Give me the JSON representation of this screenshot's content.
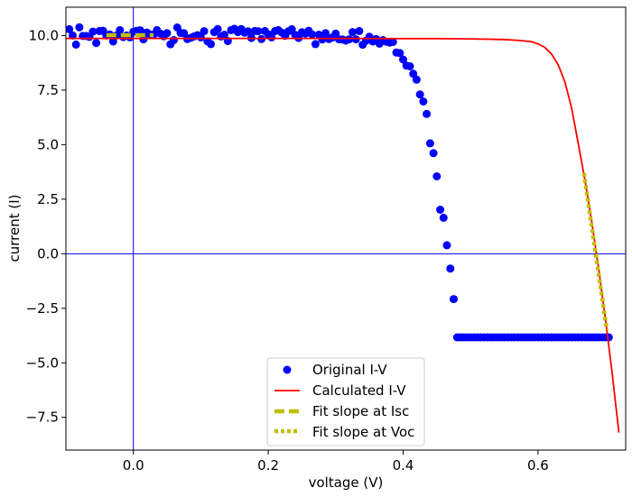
{
  "chart_data": {
    "type": "scatter",
    "xlabel": "voltage (V)",
    "ylabel": "current (I)",
    "xlim": [
      -0.1,
      0.73
    ],
    "ylim": [
      -9.0,
      11.3
    ],
    "xticks": [
      0.0,
      0.2,
      0.4,
      0.6
    ],
    "xtick_labels": [
      "0.0",
      "0.2",
      "0.4",
      "0.6"
    ],
    "yticks": [
      -7.5,
      -5.0,
      -2.5,
      0.0,
      2.5,
      5.0,
      7.5,
      10.0
    ],
    "ytick_labels": [
      "−7.5",
      "−5.0",
      "−2.5",
      "0.0",
      "2.5",
      "5.0",
      "7.5",
      "10.0"
    ],
    "grid": false,
    "reference_lines": {
      "x": 0.0,
      "y": 0.0,
      "color": "#0000ff"
    },
    "legend_position": "lower-center",
    "series": [
      {
        "name": "Original I-V",
        "kind": "scatter",
        "color": "#0000ff",
        "x": [
          -0.095,
          -0.09,
          -0.085,
          -0.08,
          -0.075,
          -0.07,
          -0.065,
          -0.06,
          -0.055,
          -0.05,
          -0.045,
          -0.04,
          -0.035,
          -0.03,
          -0.025,
          -0.02,
          -0.015,
          -0.01,
          -0.005,
          0.0,
          0.005,
          0.01,
          0.015,
          0.02,
          0.025,
          0.03,
          0.035,
          0.04,
          0.045,
          0.05,
          0.055,
          0.06,
          0.065,
          0.07,
          0.075,
          0.08,
          0.085,
          0.09,
          0.095,
          0.1,
          0.105,
          0.11,
          0.115,
          0.12,
          0.125,
          0.13,
          0.135,
          0.14,
          0.145,
          0.15,
          0.155,
          0.16,
          0.165,
          0.17,
          0.175,
          0.18,
          0.185,
          0.19,
          0.195,
          0.2,
          0.205,
          0.21,
          0.215,
          0.22,
          0.225,
          0.23,
          0.235,
          0.24,
          0.245,
          0.25,
          0.255,
          0.26,
          0.265,
          0.27,
          0.275,
          0.28,
          0.285,
          0.29,
          0.295,
          0.3,
          0.305,
          0.31,
          0.315,
          0.32,
          0.325,
          0.33,
          0.335,
          0.34,
          0.345,
          0.35,
          0.355,
          0.36,
          0.365,
          0.37,
          0.375,
          0.38,
          0.385,
          0.39,
          0.395,
          0.4,
          0.405,
          0.41,
          0.415,
          0.42,
          0.425,
          0.43,
          0.435,
          0.44,
          0.445,
          0.45,
          0.455,
          0.46,
          0.465,
          0.47,
          0.475,
          0.48,
          0.485,
          0.49,
          0.495,
          0.5,
          0.505,
          0.51,
          0.515,
          0.52,
          0.525,
          0.53,
          0.535,
          0.54,
          0.545,
          0.55,
          0.555,
          0.56,
          0.565,
          0.57,
          0.575,
          0.58,
          0.585,
          0.59,
          0.595,
          0.6,
          0.605,
          0.61,
          0.615,
          0.62,
          0.625,
          0.63,
          0.635,
          0.64,
          0.645,
          0.65,
          0.655,
          0.66,
          0.665,
          0.67,
          0.675,
          0.68,
          0.685,
          0.69,
          0.695,
          0.7,
          0.705
        ],
        "y": [
          10.29,
          10.0,
          9.59,
          10.38,
          9.98,
          9.98,
          9.94,
          10.18,
          9.66,
          10.21,
          10.22,
          10.0,
          10.05,
          9.73,
          10.0,
          10.25,
          9.93,
          10.0,
          9.92,
          10.17,
          10.22,
          10.24,
          9.83,
          10.14,
          10.05,
          10.04,
          10.25,
          10.09,
          9.97,
          10.11,
          9.6,
          9.79,
          10.37,
          10.12,
          10.11,
          9.84,
          9.9,
          9.96,
          10.02,
          9.92,
          10.2,
          9.73,
          9.61,
          10.16,
          10.3,
          9.96,
          10.04,
          9.75,
          10.25,
          10.31,
          10.16,
          10.3,
          10.13,
          10.19,
          9.89,
          10.21,
          10.2,
          9.84,
          10.21,
          10.06,
          9.92,
          10.21,
          10.25,
          10.14,
          9.99,
          10.2,
          10.29,
          10.03,
          9.89,
          10.15,
          10.09,
          10.22,
          10.05,
          9.61,
          10.04,
          9.82,
          10.11,
          9.84,
          9.91,
          10.09,
          9.83,
          9.82,
          9.77,
          9.83,
          10.16,
          9.83,
          10.21,
          9.58,
          9.76,
          9.95,
          9.73,
          9.84,
          9.63,
          9.79,
          9.72,
          9.68,
          9.71,
          9.22,
          9.2,
          8.9,
          8.62,
          8.59,
          8.25,
          7.98,
          7.3,
          6.98,
          6.41,
          5.06,
          4.61,
          3.55,
          2.02,
          1.65,
          0.39,
          -0.68,
          -2.08,
          -3.83,
          -3.83,
          -3.83,
          -3.83,
          -3.83,
          -3.83,
          -3.83,
          -3.83,
          -3.83,
          -3.83,
          -3.83,
          -3.83,
          -3.83,
          -3.83,
          -3.83,
          -3.83,
          -3.83,
          -3.83,
          -3.83,
          -3.83,
          -3.83,
          -3.83,
          -3.83,
          -3.83,
          -3.83,
          -3.83,
          -3.83,
          -3.83,
          -3.83,
          -3.83,
          -3.83,
          -3.83,
          -3.83,
          -3.83,
          -3.83,
          -3.83,
          -3.83,
          -3.83,
          -3.83,
          -3.83,
          -3.83,
          -3.83,
          -3.83,
          -3.83,
          -3.83,
          -3.83
        ]
      },
      {
        "name": "Calculated I-V",
        "kind": "line",
        "color": "#ff0000",
        "x": [
          -0.1,
          0.0,
          0.1,
          0.2,
          0.3,
          0.4,
          0.45,
          0.5,
          0.55,
          0.575,
          0.59,
          0.6,
          0.61,
          0.62,
          0.63,
          0.64,
          0.65,
          0.66,
          0.67,
          0.68,
          0.69,
          0.7,
          0.71,
          0.72
        ],
        "y": [
          9.87,
          9.87,
          9.87,
          9.87,
          9.87,
          9.86,
          9.86,
          9.85,
          9.82,
          9.77,
          9.72,
          9.62,
          9.46,
          9.16,
          8.66,
          7.86,
          6.66,
          5.0,
          3.3,
          1.4,
          -0.7,
          -3.0,
          -5.5,
          -8.2
        ]
      },
      {
        "name": "Fit slope at Isc",
        "kind": "line",
        "style": "dashed",
        "color": "#bfbf00",
        "x": [
          -0.04,
          0.03
        ],
        "y": [
          10.02,
          10.02
        ]
      },
      {
        "name": "Fit slope at Voc",
        "kind": "line",
        "style": "dotted",
        "color": "#bfbf00",
        "x": [
          0.668,
          0.702
        ],
        "y": [
          3.7,
          -3.5
        ]
      }
    ]
  }
}
